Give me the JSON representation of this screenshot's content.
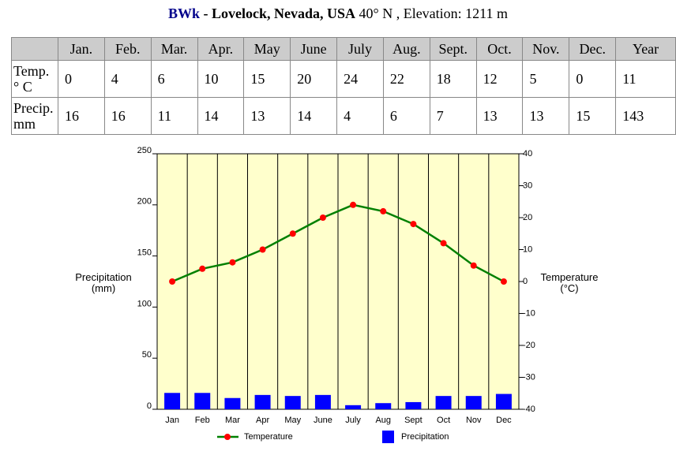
{
  "title": [
    "BWk",
    " - Lovelock, Nevada, USA",
    " 40° N , Elevation: 1211 m"
  ],
  "table": {
    "header": [
      "Jan.",
      "Feb.",
      "Mar.",
      "Apr.",
      "May",
      "June",
      "July",
      "Aug.",
      "Sept.",
      "Oct.",
      "Nov.",
      "Dec.",
      "Year"
    ],
    "rows": [
      {
        "label": "Temp. ° C",
        "cells": [
          "0",
          "4",
          "6",
          "10",
          "15",
          "20",
          "24",
          "22",
          "18",
          "12",
          "5",
          "0",
          "11"
        ]
      },
      {
        "label": "Precip. mm",
        "cells": [
          "16",
          "16",
          "11",
          "14",
          "13",
          "14",
          "4",
          "6",
          "7",
          "13",
          "13",
          "15",
          "143"
        ]
      }
    ]
  },
  "chart_data": {
    "type": "bar",
    "categories": [
      "Jan",
      "Feb",
      "Mar",
      "Apr",
      "May",
      "June",
      "July",
      "Aug",
      "Sept",
      "Oct",
      "Nov",
      "Dec"
    ],
    "series": [
      {
        "name": "Temperature",
        "type": "line",
        "axis": "y2",
        "color": "#008000",
        "marker_color": "#ff0000",
        "values": [
          0,
          4,
          6,
          10,
          15,
          20,
          24,
          22,
          18,
          12,
          5,
          0
        ]
      },
      {
        "name": "Precipitation",
        "type": "bar",
        "color": "#0000ff",
        "values": [
          16,
          16,
          11,
          14,
          13,
          14,
          4,
          6,
          7,
          13,
          13,
          15
        ]
      }
    ],
    "ylabel": "Precipitation (mm)",
    "y2label": "Temperature (°C)",
    "ylim": [
      0,
      250
    ],
    "yticks": [
      0,
      50,
      100,
      150,
      200,
      250
    ],
    "y2lim": [
      -40,
      40
    ],
    "y2ticks": [
      -40,
      -30,
      -20,
      -10,
      0,
      10,
      20,
      30,
      40
    ],
    "background": "#ffffcc",
    "grid": true
  }
}
